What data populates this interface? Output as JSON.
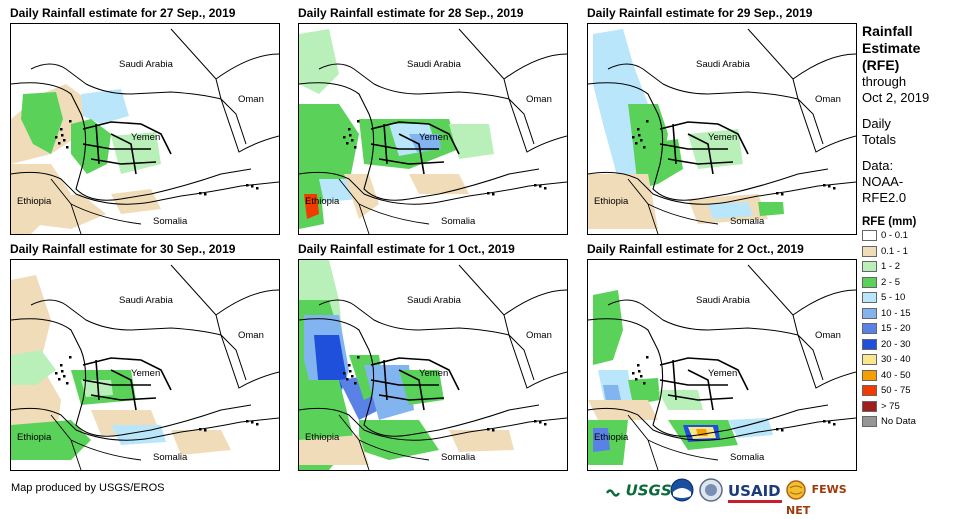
{
  "panels": [
    {
      "title": "Daily Rainfall estimate for 27 Sep., 2019",
      "scenario": "p27"
    },
    {
      "title": "Daily Rainfall estimate for 28 Sep., 2019",
      "scenario": "p28"
    },
    {
      "title": "Daily Rainfall estimate for 29 Sep., 2019",
      "scenario": "p29"
    },
    {
      "title": "Daily Rainfall estimate for 30 Sep., 2019",
      "scenario": "p30"
    },
    {
      "title": "Daily Rainfall estimate for 1 Oct., 2019",
      "scenario": "p01"
    },
    {
      "title": "Daily Rainfall estimate for 2 Oct., 2019",
      "scenario": "p02"
    }
  ],
  "map_labels": {
    "saudi": "Saudi Arabia",
    "oman": "Oman",
    "yemen": "Yemen",
    "ethiopia": "Ethiopia",
    "somalia": "Somalia"
  },
  "legend": {
    "title": "Rainfall Estimate (RFE)",
    "title_line1": "Rainfall",
    "title_line2": "Estimate",
    "title_line3": "(RFE)",
    "through_label": "through",
    "through_date": "Oct 2, 2019",
    "daily_line1": "Daily",
    "daily_line2": "Totals",
    "data_line1": "Data:",
    "data_line2": "NOAA-",
    "data_line3": "RFE2.0",
    "rfe_title": "RFE (mm)",
    "classes": [
      {
        "label": "0 - 0.1",
        "color": "#ffffff"
      },
      {
        "label": "0.1 - 1",
        "color": "#f0dcb9"
      },
      {
        "label": "1 - 2",
        "color": "#b9f0b9"
      },
      {
        "label": "2 - 5",
        "color": "#5ad25a"
      },
      {
        "label": "5 - 10",
        "color": "#b9e6fa"
      },
      {
        "label": "10 - 15",
        "color": "#82b4f0"
      },
      {
        "label": "15 - 20",
        "color": "#5a82e6"
      },
      {
        "label": "20 - 30",
        "color": "#1e50dc"
      },
      {
        "label": "30 - 40",
        "color": "#fae68c"
      },
      {
        "label": "40 - 50",
        "color": "#f5a000"
      },
      {
        "label": "50 - 75",
        "color": "#f03c00"
      },
      {
        "label": "> 75",
        "color": "#a01e1e"
      },
      {
        "label": "No Data",
        "color": "#969696"
      }
    ]
  },
  "footer": {
    "credit": "Map produced by USGS/EROS"
  },
  "logos": {
    "usgs": "USGS",
    "usaid": "USAID",
    "fews": "FEWS NET"
  }
}
